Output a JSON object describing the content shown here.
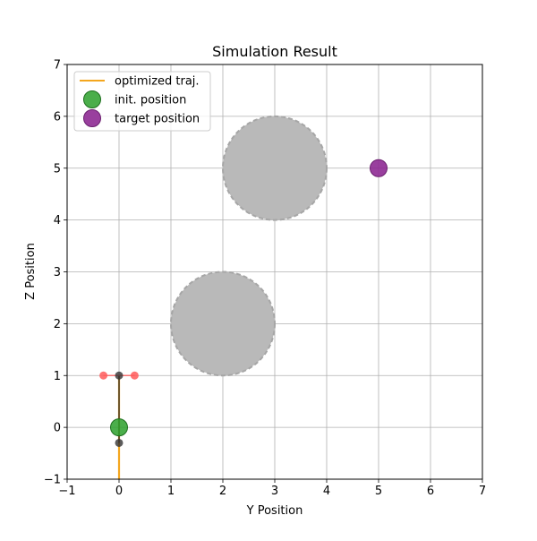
{
  "chart_data": {
    "type": "scatter",
    "title": "Simulation Result",
    "xlabel": "Y Position",
    "ylabel": "Z Position",
    "xlim": [
      -1,
      7
    ],
    "ylim": [
      -1,
      7
    ],
    "x_ticks": [
      -1,
      0,
      1,
      2,
      3,
      4,
      5,
      6,
      7
    ],
    "y_ticks": [
      -1,
      0,
      1,
      2,
      3,
      4,
      5,
      6,
      7
    ],
    "x_tick_labels": [
      "−1",
      "0",
      "1",
      "2",
      "3",
      "4",
      "5",
      "6",
      "7"
    ],
    "y_tick_labels": [
      "−1",
      "0",
      "1",
      "2",
      "3",
      "4",
      "5",
      "6",
      "7"
    ],
    "grid": true,
    "legend_position": "upper-left",
    "obstacles": [
      {
        "center": [
          3,
          5
        ],
        "radius": 1.0,
        "color": "#b9b9b9"
      },
      {
        "center": [
          2,
          2
        ],
        "radius": 1.0,
        "color": "#b9b9b9"
      }
    ],
    "series": [
      {
        "name": "optimized traj.",
        "kind": "line",
        "color": "#f4a61e",
        "x": [
          0,
          0
        ],
        "y": [
          -1,
          1
        ]
      },
      {
        "name": "init. position",
        "kind": "marker",
        "color": "#2ca02c",
        "x": [
          0
        ],
        "y": [
          0
        ]
      },
      {
        "name": "target position",
        "kind": "marker",
        "color": "#8e2a93",
        "x": [
          5
        ],
        "y": [
          5
        ]
      }
    ],
    "vehicle": {
      "body": {
        "x": [
          0,
          0
        ],
        "y": [
          -0.3,
          1
        ],
        "color": "#333333"
      },
      "joints": [
        {
          "x": 0,
          "y": 1,
          "color": "#333333"
        },
        {
          "x": 0,
          "y": -0.3,
          "color": "#333333"
        }
      ],
      "crossbar": {
        "x": [
          -0.3,
          0.3
        ],
        "y": [
          1,
          1
        ],
        "color": "#ff5a5a"
      },
      "propellers": [
        {
          "x": -0.3,
          "y": 1,
          "color": "#ff5a5a"
        },
        {
          "x": 0.3,
          "y": 1,
          "color": "#ff5a5a"
        }
      ]
    }
  }
}
